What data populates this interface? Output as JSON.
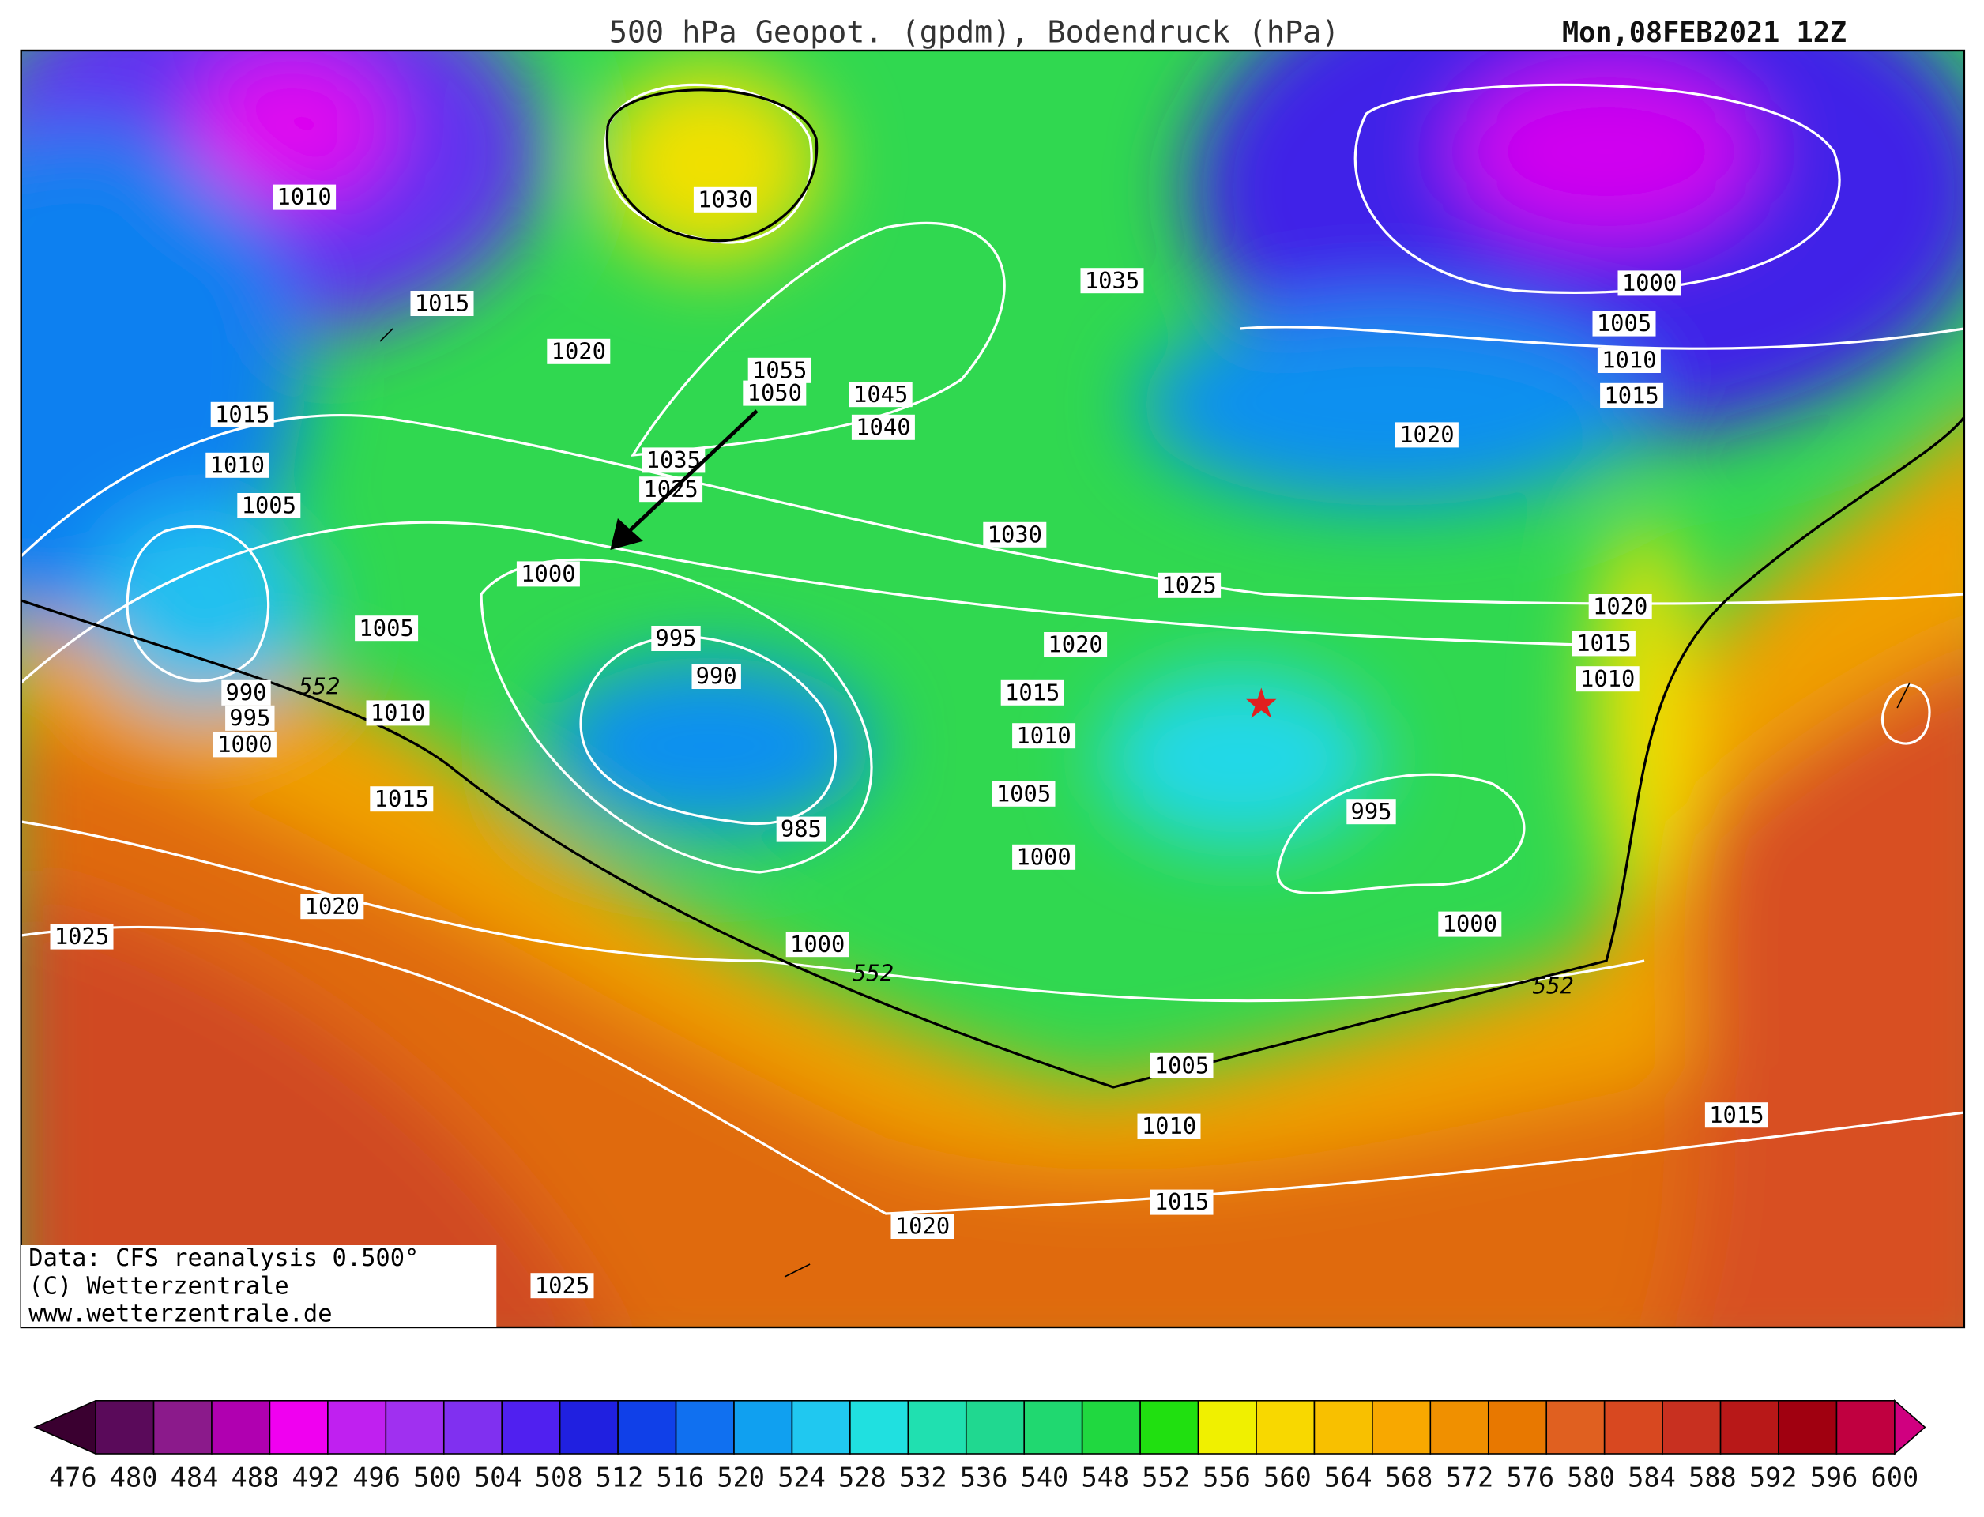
{
  "header": {
    "title": "500 hPa Geopot. (gpdm), Bodendruck (hPa)",
    "date": "Mon,08FEB2021 12Z"
  },
  "map": {
    "labels": [
      "1010",
      "1030",
      "1015",
      "1035",
      "1000",
      "1005",
      "1010",
      "1015",
      "1020",
      "1055",
      "1050",
      "1045",
      "1040",
      "1015",
      "1010",
      "1005",
      "1035",
      "1025",
      "1030",
      "1020",
      "1000",
      "1025",
      "1020",
      "1005",
      "995",
      "1020",
      "1015",
      "990",
      "1010",
      "990",
      "552",
      "1015",
      "995",
      "1010",
      "1010",
      "1000",
      "1015",
      "1005",
      "985",
      "995",
      "1000",
      "1020",
      "1025",
      "1000",
      "1000",
      "552",
      "552",
      "1005",
      "1015",
      "1010",
      "1015",
      "1020",
      "1025"
    ],
    "credits": [
      "Data: CFS reanalysis 0.500°",
      "(C) Wetterzentrale",
      "www.wetterzentrale.de"
    ]
  },
  "colorbar": {
    "labels": [
      "476",
      "480",
      "484",
      "488",
      "492",
      "496",
      "500",
      "504",
      "508",
      "512",
      "516",
      "520",
      "524",
      "528",
      "532",
      "536",
      "540",
      "548",
      "552",
      "556",
      "560",
      "564",
      "568",
      "572",
      "576",
      "580",
      "584",
      "588",
      "592",
      "596",
      "600"
    ],
    "colors": [
      "#3a0030",
      "#5a0a5a",
      "#8b1a8b",
      "#b000b0",
      "#f000f0",
      "#c020f0",
      "#a030f0",
      "#8030f0",
      "#5020f0",
      "#2020e0",
      "#1040e8",
      "#1070f0",
      "#10a0f0",
      "#20c8f0",
      "#20e0e0",
      "#20e0b0",
      "#20d890",
      "#20d870",
      "#20d840",
      "#20e010",
      "#f0f000",
      "#f8d800",
      "#f8c000",
      "#f8a800",
      "#f09000",
      "#e87800",
      "#e06020",
      "#d84820",
      "#c83020",
      "#b81818",
      "#a00010",
      "#c00040",
      "#d00080"
    ]
  }
}
